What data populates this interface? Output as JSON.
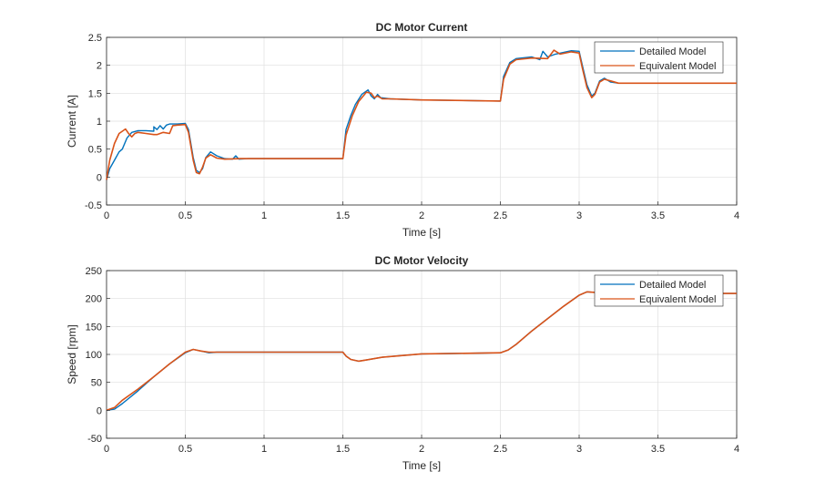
{
  "chart_data": [
    {
      "type": "line",
      "title": "DC Motor Current",
      "xlabel": "Time [s]",
      "ylabel": "Current [A]",
      "xlim": [
        0,
        4
      ],
      "ylim": [
        -0.5,
        2.5
      ],
      "xticks": [
        0,
        0.5,
        1,
        1.5,
        2,
        2.5,
        3,
        3.5,
        4
      ],
      "xtick_labels": [
        "0",
        "0.5",
        "1",
        "1.5",
        "2",
        "2.5",
        "3",
        "3.5",
        "4"
      ],
      "yticks": [
        -0.5,
        0,
        0.5,
        1,
        1.5,
        2,
        2.5
      ],
      "ytick_labels": [
        "-0.5",
        "0",
        "0.5",
        "1",
        "1.5",
        "2",
        "2.5"
      ],
      "grid": true,
      "legend": "top-right",
      "series": [
        {
          "name": "Detailed Model",
          "color": "#0072BD",
          "points": [
            [
              0,
              -0.05
            ],
            [
              0.02,
              0.15
            ],
            [
              0.05,
              0.3
            ],
            [
              0.08,
              0.45
            ],
            [
              0.1,
              0.5
            ],
            [
              0.13,
              0.7
            ],
            [
              0.16,
              0.8
            ],
            [
              0.2,
              0.83
            ],
            [
              0.25,
              0.83
            ],
            [
              0.3,
              0.82
            ],
            [
              0.3,
              0.9
            ],
            [
              0.32,
              0.85
            ],
            [
              0.34,
              0.92
            ],
            [
              0.36,
              0.86
            ],
            [
              0.38,
              0.93
            ],
            [
              0.4,
              0.95
            ],
            [
              0.45,
              0.95
            ],
            [
              0.5,
              0.96
            ],
            [
              0.52,
              0.85
            ],
            [
              0.55,
              0.35
            ],
            [
              0.57,
              0.12
            ],
            [
              0.59,
              0.08
            ],
            [
              0.61,
              0.15
            ],
            [
              0.63,
              0.35
            ],
            [
              0.66,
              0.45
            ],
            [
              0.7,
              0.38
            ],
            [
              0.75,
              0.33
            ],
            [
              0.8,
              0.32
            ],
            [
              0.82,
              0.38
            ],
            [
              0.84,
              0.32
            ],
            [
              0.9,
              0.33
            ],
            [
              1.0,
              0.33
            ],
            [
              1.2,
              0.33
            ],
            [
              1.5,
              0.33
            ],
            [
              1.52,
              0.85
            ],
            [
              1.55,
              1.1
            ],
            [
              1.58,
              1.3
            ],
            [
              1.62,
              1.48
            ],
            [
              1.66,
              1.56
            ],
            [
              1.68,
              1.45
            ],
            [
              1.7,
              1.4
            ],
            [
              1.72,
              1.48
            ],
            [
              1.74,
              1.42
            ],
            [
              1.8,
              1.4
            ],
            [
              2.0,
              1.38
            ],
            [
              2.5,
              1.36
            ],
            [
              2.52,
              1.8
            ],
            [
              2.56,
              2.05
            ],
            [
              2.6,
              2.12
            ],
            [
              2.7,
              2.15
            ],
            [
              2.75,
              2.1
            ],
            [
              2.77,
              2.25
            ],
            [
              2.8,
              2.15
            ],
            [
              2.85,
              2.2
            ],
            [
              2.9,
              2.23
            ],
            [
              2.95,
              2.26
            ],
            [
              3.0,
              2.25
            ],
            [
              3.02,
              2.0
            ],
            [
              3.05,
              1.65
            ],
            [
              3.08,
              1.45
            ],
            [
              3.1,
              1.5
            ],
            [
              3.13,
              1.72
            ],
            [
              3.16,
              1.77
            ],
            [
              3.2,
              1.7
            ],
            [
              3.25,
              1.68
            ],
            [
              3.3,
              1.68
            ],
            [
              3.5,
              1.68
            ],
            [
              4.0,
              1.68
            ]
          ]
        },
        {
          "name": "Equivalent Model",
          "color": "#D95319",
          "points": [
            [
              0,
              -0.05
            ],
            [
              0.02,
              0.3
            ],
            [
              0.05,
              0.6
            ],
            [
              0.08,
              0.78
            ],
            [
              0.12,
              0.86
            ],
            [
              0.14,
              0.78
            ],
            [
              0.16,
              0.72
            ],
            [
              0.18,
              0.78
            ],
            [
              0.2,
              0.8
            ],
            [
              0.25,
              0.78
            ],
            [
              0.3,
              0.76
            ],
            [
              0.32,
              0.76
            ],
            [
              0.34,
              0.78
            ],
            [
              0.36,
              0.8
            ],
            [
              0.4,
              0.78
            ],
            [
              0.42,
              0.92
            ],
            [
              0.45,
              0.93
            ],
            [
              0.5,
              0.94
            ],
            [
              0.52,
              0.8
            ],
            [
              0.55,
              0.3
            ],
            [
              0.57,
              0.08
            ],
            [
              0.59,
              0.06
            ],
            [
              0.61,
              0.18
            ],
            [
              0.63,
              0.34
            ],
            [
              0.66,
              0.4
            ],
            [
              0.7,
              0.34
            ],
            [
              0.75,
              0.32
            ],
            [
              0.85,
              0.33
            ],
            [
              1.0,
              0.33
            ],
            [
              1.5,
              0.33
            ],
            [
              1.52,
              0.75
            ],
            [
              1.56,
              1.1
            ],
            [
              1.6,
              1.35
            ],
            [
              1.65,
              1.52
            ],
            [
              1.68,
              1.5
            ],
            [
              1.7,
              1.42
            ],
            [
              1.72,
              1.45
            ],
            [
              1.75,
              1.4
            ],
            [
              1.8,
              1.4
            ],
            [
              2.0,
              1.38
            ],
            [
              2.5,
              1.36
            ],
            [
              2.52,
              1.75
            ],
            [
              2.56,
              2.02
            ],
            [
              2.6,
              2.1
            ],
            [
              2.7,
              2.13
            ],
            [
              2.8,
              2.12
            ],
            [
              2.84,
              2.27
            ],
            [
              2.88,
              2.2
            ],
            [
              2.95,
              2.24
            ],
            [
              3.0,
              2.22
            ],
            [
              3.02,
              1.95
            ],
            [
              3.05,
              1.6
            ],
            [
              3.08,
              1.42
            ],
            [
              3.1,
              1.48
            ],
            [
              3.13,
              1.7
            ],
            [
              3.16,
              1.75
            ],
            [
              3.2,
              1.72
            ],
            [
              3.25,
              1.68
            ],
            [
              3.5,
              1.68
            ],
            [
              4.0,
              1.68
            ]
          ]
        }
      ]
    },
    {
      "type": "line",
      "title": "DC Motor Velocity",
      "xlabel": "Time [s]",
      "ylabel": "Speed [rpm]",
      "xlim": [
        0,
        4
      ],
      "ylim": [
        -50,
        250
      ],
      "xticks": [
        0,
        0.5,
        1,
        1.5,
        2,
        2.5,
        3,
        3.5,
        4
      ],
      "xtick_labels": [
        "0",
        "0.5",
        "1",
        "1.5",
        "2",
        "2.5",
        "3",
        "3.5",
        "4"
      ],
      "yticks": [
        -50,
        0,
        50,
        100,
        150,
        200,
        250
      ],
      "ytick_labels": [
        "-50",
        "0",
        "50",
        "100",
        "150",
        "200",
        "250"
      ],
      "grid": true,
      "legend": "top-right",
      "series": [
        {
          "name": "Detailed Model",
          "color": "#0072BD",
          "points": [
            [
              0,
              0
            ],
            [
              0.05,
              2
            ],
            [
              0.1,
              12
            ],
            [
              0.2,
              35
            ],
            [
              0.3,
              60
            ],
            [
              0.4,
              83
            ],
            [
              0.5,
              103
            ],
            [
              0.55,
              109
            ],
            [
              0.6,
              106
            ],
            [
              0.65,
              103
            ],
            [
              0.7,
              104
            ],
            [
              1.0,
              104
            ],
            [
              1.5,
              104
            ],
            [
              1.52,
              97
            ],
            [
              1.55,
              91
            ],
            [
              1.6,
              88
            ],
            [
              1.65,
              90
            ],
            [
              1.75,
              95
            ],
            [
              2.0,
              101
            ],
            [
              2.5,
              103
            ],
            [
              2.55,
              108
            ],
            [
              2.6,
              118
            ],
            [
              2.7,
              142
            ],
            [
              2.8,
              164
            ],
            [
              2.9,
              186
            ],
            [
              3.0,
              206
            ],
            [
              3.05,
              212
            ],
            [
              3.1,
              211
            ],
            [
              3.15,
              209
            ],
            [
              3.5,
              209
            ],
            [
              4.0,
              209
            ]
          ]
        },
        {
          "name": "Equivalent Model",
          "color": "#D95319",
          "points": [
            [
              0,
              0
            ],
            [
              0.05,
              5
            ],
            [
              0.1,
              18
            ],
            [
              0.2,
              38
            ],
            [
              0.3,
              60
            ],
            [
              0.4,
              83
            ],
            [
              0.5,
              104
            ],
            [
              0.55,
              109
            ],
            [
              0.6,
              106
            ],
            [
              0.65,
              104
            ],
            [
              0.7,
              104
            ],
            [
              1.0,
              104
            ],
            [
              1.5,
              104
            ],
            [
              1.52,
              97
            ],
            [
              1.55,
              91
            ],
            [
              1.6,
              88
            ],
            [
              1.65,
              90
            ],
            [
              1.75,
              95
            ],
            [
              2.0,
              101
            ],
            [
              2.5,
              103
            ],
            [
              2.55,
              108
            ],
            [
              2.6,
              118
            ],
            [
              2.7,
              142
            ],
            [
              2.8,
              164
            ],
            [
              2.9,
              186
            ],
            [
              3.0,
              206
            ],
            [
              3.05,
              212
            ],
            [
              3.1,
              211
            ],
            [
              3.15,
              209
            ],
            [
              3.5,
              209
            ],
            [
              4.0,
              209
            ]
          ]
        }
      ]
    }
  ]
}
